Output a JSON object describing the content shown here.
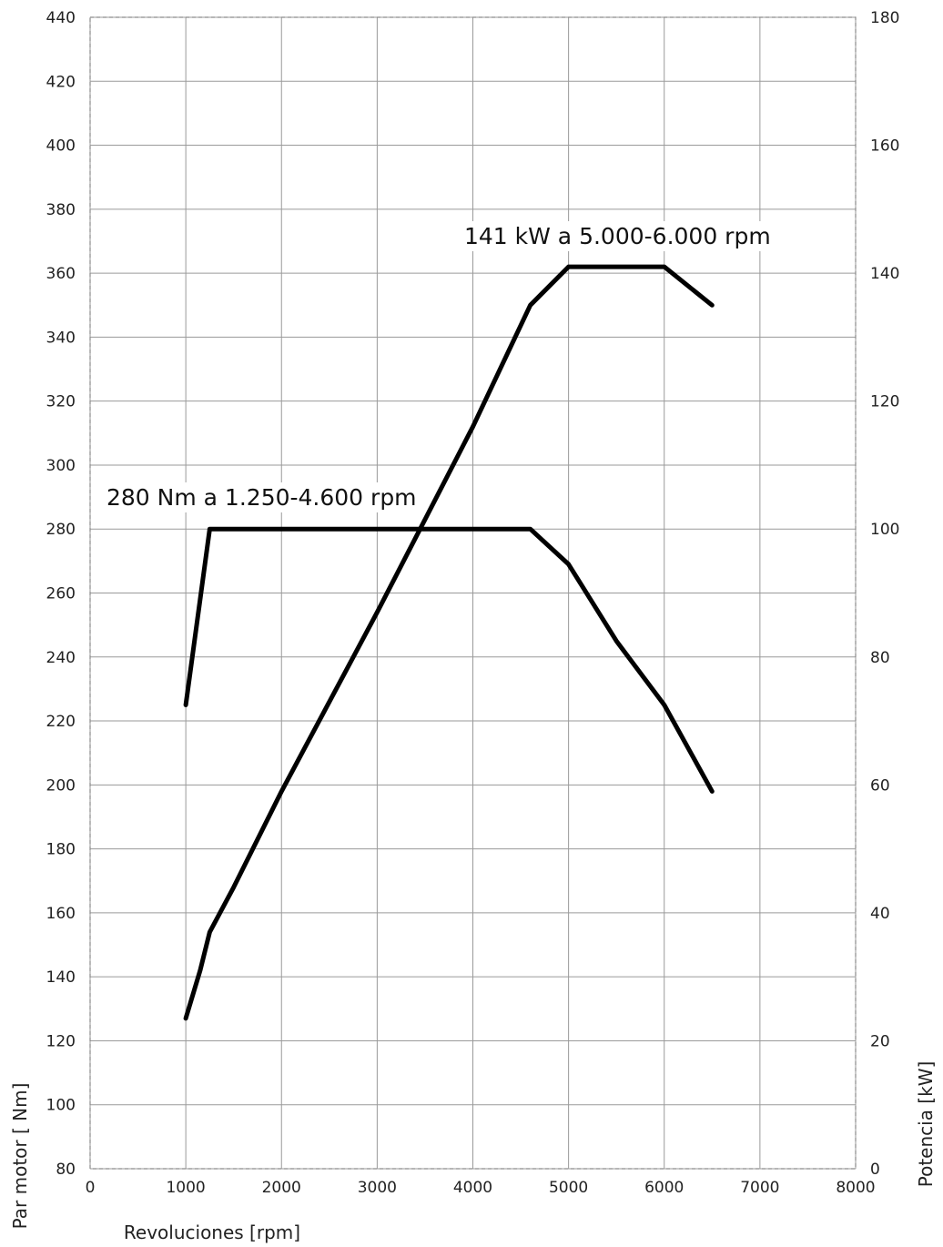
{
  "chart_data": {
    "type": "line",
    "x_axis": {
      "label": "Revoluciones [rpm]",
      "range": [
        0,
        8000
      ],
      "ticks": [
        0,
        1000,
        2000,
        3000,
        4000,
        5000,
        6000,
        7000,
        8000
      ]
    },
    "y_axis_left": {
      "label": "Par motor [ Nm]",
      "range": [
        80,
        440
      ],
      "ticks": [
        80,
        100,
        120,
        140,
        160,
        180,
        200,
        220,
        240,
        260,
        280,
        300,
        320,
        340,
        360,
        380,
        400,
        420,
        440
      ]
    },
    "y_axis_right": {
      "label": "Potencia [kW]",
      "range": [
        0,
        180
      ],
      "ticks": [
        0,
        20,
        40,
        60,
        80,
        100,
        120,
        140,
        160,
        180
      ]
    },
    "grid": true,
    "series": [
      {
        "axis": "left",
        "x": [
          1000,
          1250,
          4600,
          5000,
          5500,
          6000,
          6500
        ],
        "y": [
          225,
          280,
          280,
          269,
          245,
          225,
          198
        ]
      },
      {
        "axis": "right",
        "x": [
          1000,
          1150,
          1250,
          1500,
          2000,
          3000,
          4000,
          4600,
          5000,
          6000,
          6500
        ],
        "y": [
          23.5,
          31,
          37,
          44,
          59,
          87,
          116,
          135,
          141,
          141,
          135
        ]
      }
    ],
    "annotations": [
      {
        "text": "280 Nm a 1.250-4.600 rpm"
      },
      {
        "text": "141 kW a 5.000-6.000  rpm"
      }
    ]
  }
}
